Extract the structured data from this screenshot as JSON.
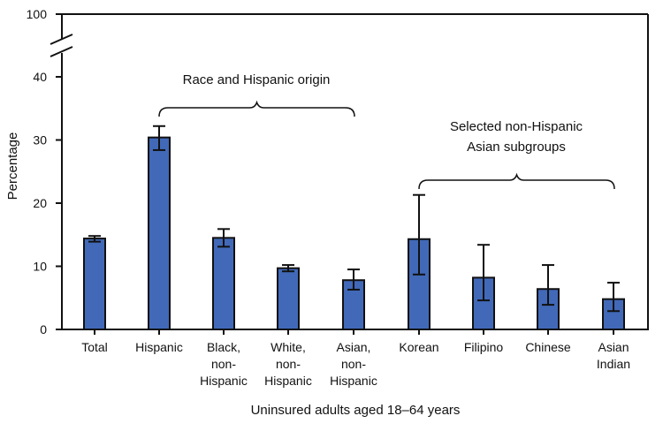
{
  "chart_data": {
    "type": "bar",
    "title": "",
    "xlabel": "Uninsured adults aged 18–64 years",
    "ylabel": "Percentage",
    "ylim": [
      0,
      100
    ],
    "axis_break": {
      "from": 40,
      "to": 100
    },
    "yticks": [
      0,
      10,
      20,
      30,
      40,
      100
    ],
    "grid": false,
    "legend": null,
    "bar_color": "#4169b8",
    "categories": [
      "Total",
      "Hispanic",
      "Black, non-Hispanic",
      "White, non-Hispanic",
      "Asian, non-Hispanic",
      "Korean",
      "Filipino",
      "Chinese",
      "Asian Indian"
    ],
    "category_lines": [
      [
        "Total"
      ],
      [
        "Hispanic"
      ],
      [
        "Black,",
        "non-",
        "Hispanic"
      ],
      [
        "White,",
        "non-",
        "Hispanic"
      ],
      [
        "Asian,",
        "non-",
        "Hispanic"
      ],
      [
        "Korean"
      ],
      [
        "Filipino"
      ],
      [
        "Chinese"
      ],
      [
        "Asian",
        "Indian"
      ]
    ],
    "values": [
      14.4,
      30.4,
      14.5,
      9.7,
      7.8,
      14.3,
      8.2,
      6.4,
      4.8
    ],
    "ci_lower": [
      13.9,
      28.4,
      13.1,
      9.2,
      6.3,
      8.7,
      4.6,
      3.9,
      2.9
    ],
    "ci_upper": [
      14.8,
      32.2,
      15.9,
      10.2,
      9.5,
      21.3,
      13.4,
      10.2,
      7.4
    ],
    "annotations": [
      {
        "text": [
          "Race and Hispanic origin"
        ],
        "spans": [
          "Hispanic",
          "Asian, non-Hispanic"
        ]
      },
      {
        "text": [
          "Selected non-Hispanic",
          "Asian subgroups"
        ],
        "spans": [
          "Korean",
          "Asian Indian"
        ]
      }
    ]
  }
}
